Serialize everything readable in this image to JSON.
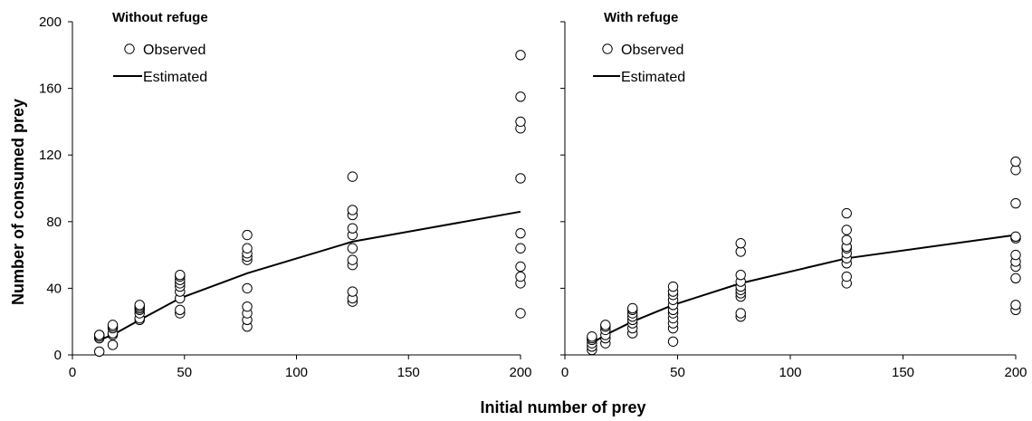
{
  "figure": {
    "ylabel": "Number of consumed prey",
    "xlabel": "Initial number of prey"
  },
  "chart_data": [
    {
      "type": "scatter",
      "title": "Without refuge",
      "xlabel": "Initial number of prey",
      "ylabel": "Number of consumed prey",
      "xlim": [
        0,
        200
      ],
      "ylim": [
        0,
        200
      ],
      "xticks": [
        0,
        50,
        100,
        150,
        200
      ],
      "yticks": [
        0,
        40,
        80,
        120,
        160,
        200
      ],
      "grid": false,
      "legend_position": "top-left",
      "series": [
        {
          "name": "Observed",
          "kind": "points",
          "points": [
            [
              12,
              2
            ],
            [
              12,
              10
            ],
            [
              12,
              11
            ],
            [
              12,
              12
            ],
            [
              12,
              12
            ],
            [
              18,
              6
            ],
            [
              18,
              12
            ],
            [
              18,
              13
            ],
            [
              18,
              16
            ],
            [
              18,
              17
            ],
            [
              18,
              18
            ],
            [
              30,
              21
            ],
            [
              30,
              22
            ],
            [
              30,
              25
            ],
            [
              30,
              27
            ],
            [
              30,
              28
            ],
            [
              30,
              29
            ],
            [
              30,
              30
            ],
            [
              48,
              25
            ],
            [
              48,
              27
            ],
            [
              48,
              34
            ],
            [
              48,
              38
            ],
            [
              48,
              41
            ],
            [
              48,
              43
            ],
            [
              48,
              45
            ],
            [
              48,
              47
            ],
            [
              48,
              48
            ],
            [
              78,
              17
            ],
            [
              78,
              21
            ],
            [
              78,
              25
            ],
            [
              78,
              29
            ],
            [
              78,
              40
            ],
            [
              78,
              57
            ],
            [
              78,
              59
            ],
            [
              78,
              61
            ],
            [
              78,
              64
            ],
            [
              78,
              72
            ],
            [
              125,
              32
            ],
            [
              125,
              34
            ],
            [
              125,
              38
            ],
            [
              125,
              54
            ],
            [
              125,
              57
            ],
            [
              125,
              64
            ],
            [
              125,
              72
            ],
            [
              125,
              76
            ],
            [
              125,
              84
            ],
            [
              125,
              87
            ],
            [
              125,
              107
            ],
            [
              200,
              25
            ],
            [
              200,
              43
            ],
            [
              200,
              47
            ],
            [
              200,
              53
            ],
            [
              200,
              64
            ],
            [
              200,
              73
            ],
            [
              200,
              106
            ],
            [
              200,
              136
            ],
            [
              200,
              140
            ],
            [
              200,
              155
            ],
            [
              200,
              180
            ]
          ]
        },
        {
          "name": "Estimated",
          "kind": "line",
          "points": [
            [
              12,
              9
            ],
            [
              18,
              12
            ],
            [
              30,
              21
            ],
            [
              48,
              34
            ],
            [
              78,
              49
            ],
            [
              125,
              68
            ],
            [
              200,
              86
            ]
          ]
        }
      ]
    },
    {
      "type": "scatter",
      "title": "With refuge",
      "xlabel": "Initial number of prey",
      "ylabel": "Number of consumed prey",
      "xlim": [
        0,
        200
      ],
      "ylim": [
        0,
        200
      ],
      "xticks": [
        0,
        50,
        100,
        150,
        200
      ],
      "yticks": [
        0,
        40,
        80,
        120,
        160,
        200
      ],
      "grid": false,
      "legend_position": "top-left",
      "series": [
        {
          "name": "Observed",
          "kind": "points",
          "points": [
            [
              12,
              3
            ],
            [
              12,
              5
            ],
            [
              12,
              7
            ],
            [
              12,
              9
            ],
            [
              12,
              10
            ],
            [
              12,
              11
            ],
            [
              18,
              7
            ],
            [
              18,
              10
            ],
            [
              18,
              12
            ],
            [
              18,
              15
            ],
            [
              18,
              17
            ],
            [
              18,
              18
            ],
            [
              30,
              13
            ],
            [
              30,
              16
            ],
            [
              30,
              19
            ],
            [
              30,
              21
            ],
            [
              30,
              23
            ],
            [
              30,
              25
            ],
            [
              30,
              27
            ],
            [
              30,
              28
            ],
            [
              48,
              8
            ],
            [
              48,
              16
            ],
            [
              48,
              19
            ],
            [
              48,
              22
            ],
            [
              48,
              25
            ],
            [
              48,
              27
            ],
            [
              48,
              30
            ],
            [
              48,
              33
            ],
            [
              48,
              36
            ],
            [
              48,
              38
            ],
            [
              48,
              41
            ],
            [
              78,
              23
            ],
            [
              78,
              25
            ],
            [
              78,
              35
            ],
            [
              78,
              37
            ],
            [
              78,
              39
            ],
            [
              78,
              41
            ],
            [
              78,
              44
            ],
            [
              78,
              48
            ],
            [
              78,
              62
            ],
            [
              78,
              67
            ],
            [
              125,
              43
            ],
            [
              125,
              47
            ],
            [
              125,
              55
            ],
            [
              125,
              58
            ],
            [
              125,
              61
            ],
            [
              125,
              64
            ],
            [
              125,
              65
            ],
            [
              125,
              69
            ],
            [
              125,
              75
            ],
            [
              125,
              85
            ],
            [
              200,
              27
            ],
            [
              200,
              30
            ],
            [
              200,
              46
            ],
            [
              200,
              53
            ],
            [
              200,
              56
            ],
            [
              200,
              60
            ],
            [
              200,
              70
            ],
            [
              200,
              71
            ],
            [
              200,
              91
            ],
            [
              200,
              111
            ],
            [
              200,
              116
            ]
          ]
        },
        {
          "name": "Estimated",
          "kind": "line",
          "points": [
            [
              12,
              7
            ],
            [
              18,
              12
            ],
            [
              30,
              20
            ],
            [
              48,
              30
            ],
            [
              78,
              43
            ],
            [
              125,
              58
            ],
            [
              200,
              72
            ]
          ]
        }
      ]
    }
  ]
}
